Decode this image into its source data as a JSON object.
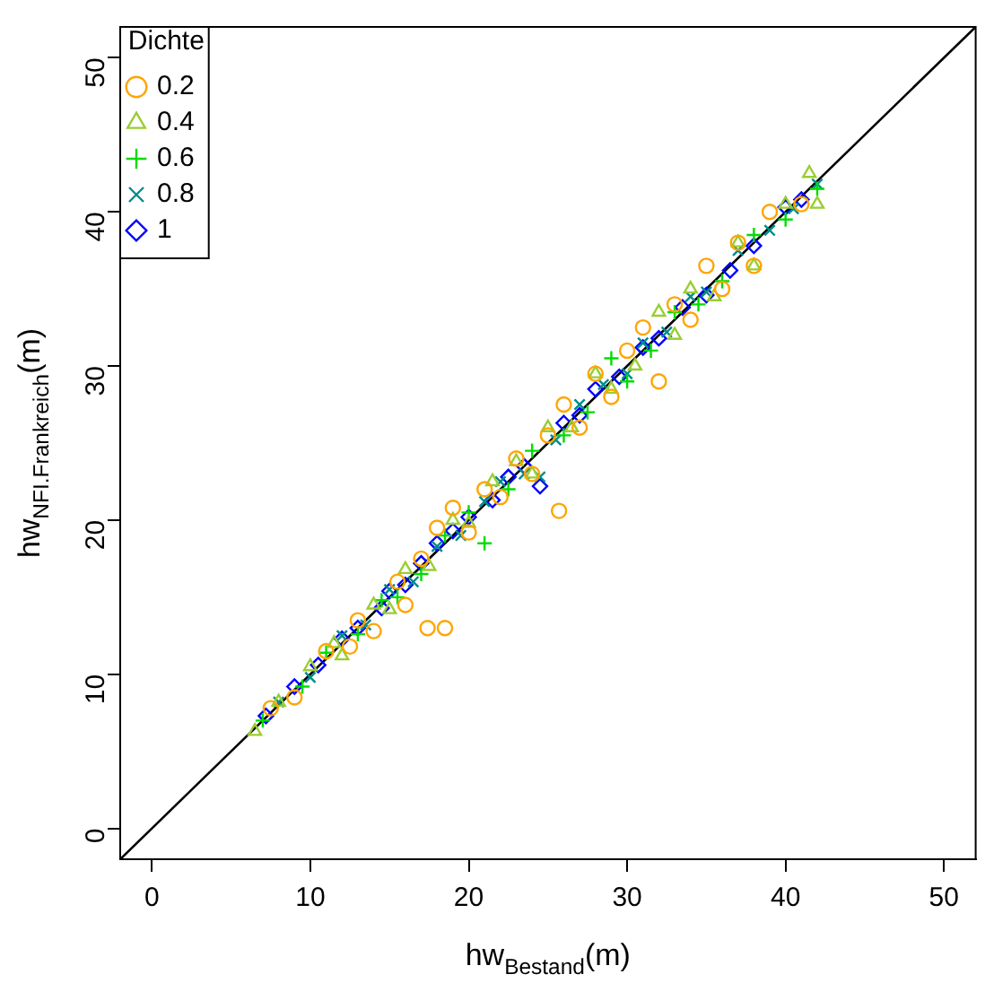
{
  "chart_data": {
    "type": "scatter",
    "xlabel": "hw$_{Bestand}$(m)",
    "ylabel": "hw$_{NFI.Frankreich}$(m)",
    "legend_title": "Dichte",
    "legend": "top left",
    "grid": false,
    "xlim": [
      -2,
      52
    ],
    "ylim": [
      -2,
      52
    ],
    "xticks": [
      0,
      10,
      20,
      30,
      40,
      50
    ],
    "yticks": [
      0,
      10,
      20,
      30,
      40,
      50
    ],
    "series": [
      {
        "name": "0.2",
        "color": "#ffa500",
        "marker": "circle",
        "x": [
          7.5,
          9,
          11,
          12.5,
          13,
          14,
          15.5,
          16,
          17,
          17.4,
          18,
          18.5,
          19,
          20,
          21,
          22,
          23,
          24,
          25,
          25.7,
          26,
          27,
          28,
          29,
          30,
          31,
          32,
          33,
          34,
          35,
          36,
          37,
          38,
          39,
          41
        ],
        "values": [
          7.8,
          8.5,
          11.5,
          11.8,
          13.5,
          12.8,
          16,
          14.5,
          17.5,
          13,
          19.5,
          13,
          20.8,
          19.2,
          22,
          21.5,
          24,
          23,
          25.5,
          20.6,
          27.5,
          26,
          29.5,
          28,
          31,
          32.5,
          29,
          34,
          33,
          36.5,
          35,
          38,
          36.5,
          40,
          40.5
        ]
      },
      {
        "name": "0.4",
        "color": "#9acd32",
        "marker": "triangle",
        "x": [
          6.5,
          8,
          10,
          11.5,
          12,
          14,
          15,
          16,
          17.5,
          19,
          20,
          21.5,
          23,
          24,
          25,
          26.5,
          28,
          29,
          30.5,
          32,
          33,
          34,
          35.5,
          37,
          38,
          40,
          41.5,
          42
        ],
        "values": [
          6.3,
          8.2,
          10.5,
          12,
          11.2,
          14.5,
          14.2,
          16.8,
          17,
          20,
          19.8,
          22.5,
          23.8,
          23,
          26,
          26,
          29.5,
          28.5,
          30,
          33.5,
          32,
          35,
          34.5,
          38,
          36.5,
          40.5,
          42.5,
          40.5
        ]
      },
      {
        "name": "0.6",
        "color": "#00dd00",
        "marker": "cross",
        "x": [
          7,
          9.5,
          11,
          13,
          14.5,
          15.5,
          17,
          18.5,
          20,
          21,
          22.5,
          24,
          26,
          27.5,
          29,
          30,
          31.5,
          33,
          34.5,
          36,
          38,
          40,
          42
        ],
        "values": [
          7,
          9.2,
          11.4,
          12.6,
          14.8,
          15,
          16.5,
          19,
          20.5,
          18.5,
          22,
          24.5,
          25.5,
          27,
          30.5,
          29,
          31,
          33.5,
          34,
          35.5,
          38.5,
          39.5,
          41.5
        ]
      },
      {
        "name": "0.8",
        "color": "#008b8b",
        "marker": "x",
        "x": [
          8,
          10,
          12,
          13.5,
          15,
          16.5,
          18,
          19.5,
          21,
          22,
          23.5,
          24.5,
          25.5,
          27,
          28.5,
          30,
          31,
          32.5,
          34,
          35,
          37,
          39,
          40.5,
          42
        ],
        "values": [
          8.2,
          9.8,
          12.5,
          13.2,
          15.5,
          16,
          18.3,
          19,
          21.2,
          22.5,
          23,
          22.8,
          25.2,
          27.5,
          28.8,
          29.5,
          31.5,
          32.2,
          34.5,
          34.8,
          37.5,
          38.8,
          40.2,
          41.8
        ]
      },
      {
        "name": "1",
        "color": "#0000ff",
        "marker": "diamond",
        "x": [
          7.2,
          9,
          10.5,
          12,
          13,
          14.5,
          15,
          16,
          17,
          18,
          19,
          20,
          21.5,
          22.5,
          23.5,
          24.5,
          26,
          27,
          28,
          29.5,
          31,
          32,
          33.5,
          35,
          36.5,
          38,
          40,
          41
        ],
        "values": [
          7.3,
          9.2,
          10.6,
          12.3,
          13,
          14.3,
          15.4,
          15.8,
          17.2,
          18.5,
          19.3,
          20.2,
          21.3,
          22.8,
          23.5,
          22.2,
          26.3,
          26.8,
          28.5,
          29.3,
          31.2,
          31.8,
          33.8,
          34.6,
          36.2,
          37.8,
          40.3,
          40.8
        ]
      },
      {
        "type": "line",
        "color": "#000000",
        "marker": "none",
        "x": [
          -2,
          52
        ],
        "values": [
          -2,
          52
        ]
      }
    ]
  }
}
